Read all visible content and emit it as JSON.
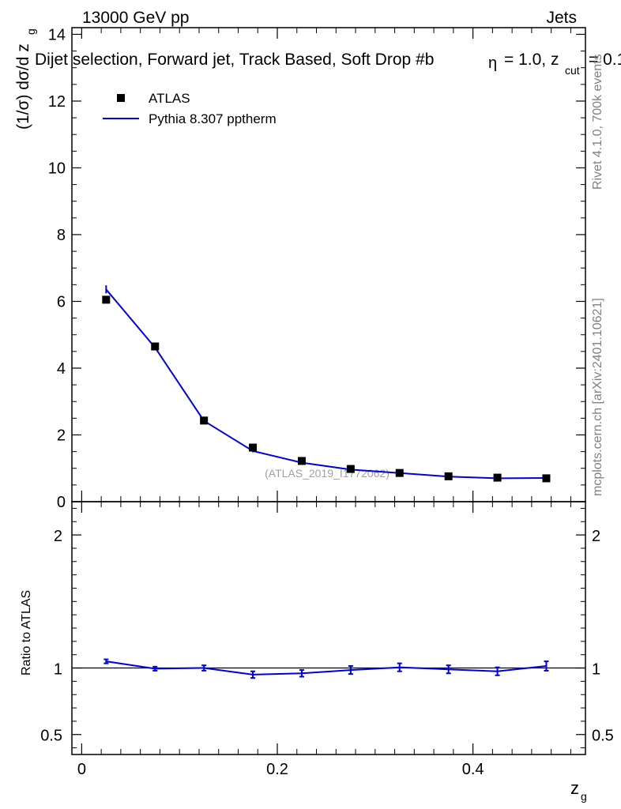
{
  "header": {
    "energy": "13000 GeV pp",
    "category": "Jets",
    "plot_title": "Dijet selection, Forward jet, Track Based, Soft Drop #b",
    "title_params": "= 1.0, z",
    "title_cut_sub": "cut",
    "title_cut_val": "= 0.1",
    "eta_char": "η"
  },
  "side_labels": {
    "rivet": "Rivet 4.1.0,  700k events",
    "mcplots": "mcplots.cern.ch [arXiv:2401.10621]"
  },
  "analysis_id": "(ATLAS_2019_I1772062)",
  "colors": {
    "data": "#000000",
    "mc": "#0000dd",
    "axis": "#000000",
    "side_text": "#808080"
  },
  "chart_data": [
    {
      "type": "scatter",
      "name": "main",
      "title": "Dijet selection, Forward jet, Track Based, Soft Drop",
      "ylabel_main": "(1/σ) dσ/d z",
      "ylabel_sub": "g",
      "xlim": [
        -0.01,
        0.515
      ],
      "ylim": [
        0,
        14.2
      ],
      "yticks": [
        0,
        2,
        4,
        6,
        8,
        10,
        12,
        14
      ],
      "ytick_labels": [
        "0",
        "2",
        "4",
        "6",
        "8",
        "10",
        "12",
        "14"
      ],
      "legend": {
        "position": "top-left",
        "entries": [
          "ATLAS",
          "Pythia 8.307 pptherm"
        ]
      },
      "series": [
        {
          "name": "ATLAS",
          "style": "markers",
          "x": [
            0.025,
            0.075,
            0.125,
            0.175,
            0.225,
            0.275,
            0.325,
            0.375,
            0.425,
            0.475
          ],
          "values": [
            6.05,
            4.65,
            2.43,
            1.62,
            1.22,
            0.98,
            0.86,
            0.76,
            0.72,
            0.7
          ]
        },
        {
          "name": "Pythia 8.307 pptherm",
          "style": "line",
          "x": [
            0.025,
            0.075,
            0.125,
            0.175,
            0.225,
            0.275,
            0.325,
            0.375,
            0.425,
            0.475
          ],
          "values": [
            6.36,
            4.62,
            2.42,
            1.52,
            1.17,
            0.96,
            0.86,
            0.75,
            0.7,
            0.71
          ],
          "errors": [
            0.12,
            0.06,
            0.05,
            0.04,
            0.03,
            0.03,
            0.03,
            0.03,
            0.03,
            0.03
          ]
        }
      ]
    },
    {
      "type": "line",
      "name": "ratio",
      "ylabel": "Ratio to ATLAS",
      "xlabel_main": "z",
      "xlabel_sub": "g",
      "xlim": [
        -0.01,
        0.515
      ],
      "ylim": [
        0.35,
        2.25
      ],
      "yticks": [
        0.5,
        1,
        2
      ],
      "ytick_labels": [
        "0.5",
        "1",
        "2"
      ],
      "xticks": [
        0,
        0.2,
        0.4
      ],
      "xtick_labels": [
        "0",
        "0.2",
        "0.4"
      ],
      "reference_line": 1.0,
      "series": [
        {
          "name": "Pythia 8.307 pptherm / ATLAS",
          "x": [
            0.025,
            0.075,
            0.125,
            0.175,
            0.225,
            0.275,
            0.325,
            0.375,
            0.425,
            0.475
          ],
          "values": [
            1.05,
            0.995,
            1.0,
            0.95,
            0.96,
            0.985,
            1.005,
            0.99,
            0.975,
            1.015
          ],
          "errors": [
            0.015,
            0.015,
            0.02,
            0.025,
            0.025,
            0.03,
            0.03,
            0.03,
            0.03,
            0.035
          ]
        }
      ]
    }
  ]
}
